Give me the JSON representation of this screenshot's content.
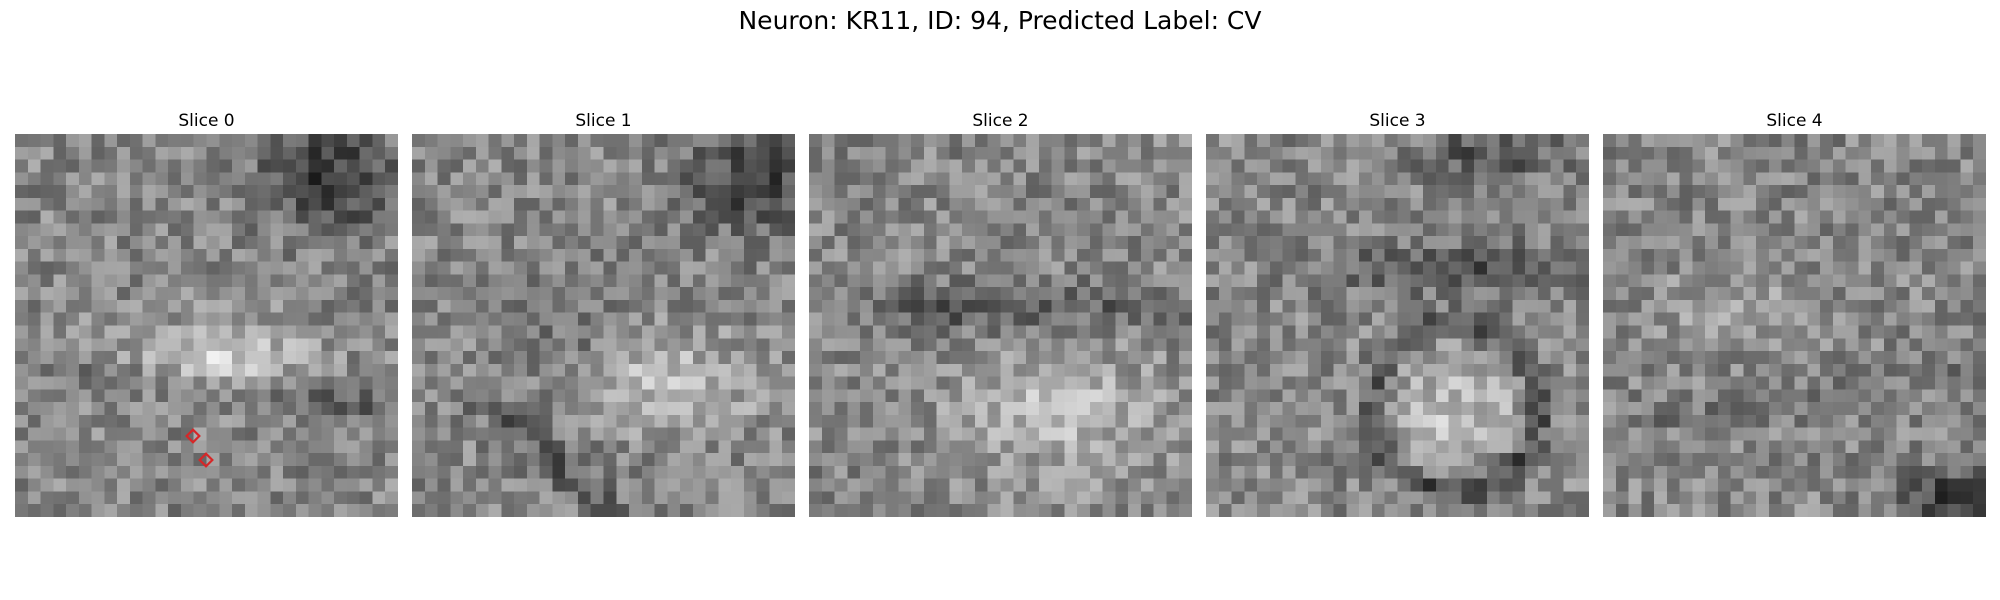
{
  "figure": {
    "title": "Neuron: KR11, ID: 94, Predicted Label: CV"
  },
  "slices": [
    {
      "label": "Slice 0",
      "seed": 11,
      "markers": 2
    },
    {
      "label": "Slice 1",
      "seed": 23,
      "markers": 0
    },
    {
      "label": "Slice 2",
      "seed": 37,
      "markers": 0
    },
    {
      "label": "Slice 3",
      "seed": 41,
      "markers": 0
    },
    {
      "label": "Slice 4",
      "seed": 59,
      "markers": 0
    }
  ],
  "colors": {
    "marker": "#d62728",
    "background": "#ffffff"
  }
}
